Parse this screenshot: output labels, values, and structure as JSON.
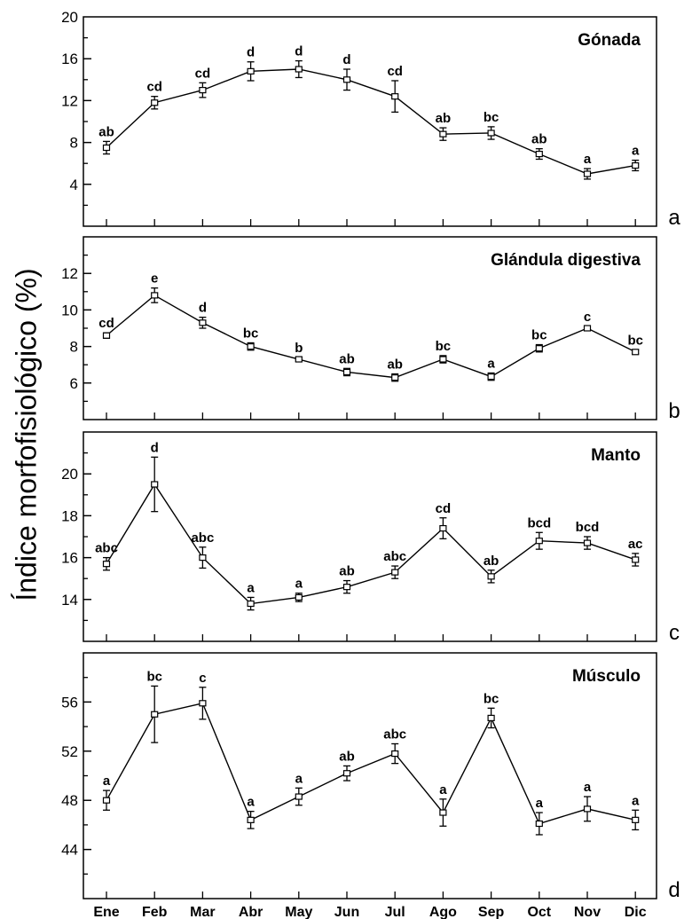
{
  "figure": {
    "ylabel": "Índice morfofisiológico (%)",
    "months": [
      "Ene",
      "Feb",
      "Mar",
      "Abr",
      "May",
      "Jun",
      "Jul",
      "Ago",
      "Sep",
      "Oct",
      "Nov",
      "Dic"
    ]
  },
  "chart_data": [
    {
      "type": "line",
      "title": "Gónada",
      "panel": "a",
      "xlabel": "",
      "ylabel": "Índice morfofisiológico (%)",
      "categories": [
        "Ene",
        "Feb",
        "Mar",
        "Abr",
        "May",
        "Jun",
        "Jul",
        "Ago",
        "Sep",
        "Oct",
        "Nov",
        "Dic"
      ],
      "values": [
        7.5,
        11.8,
        13.0,
        14.8,
        15.0,
        14.0,
        12.4,
        8.8,
        8.9,
        6.9,
        5.0,
        5.8
      ],
      "error": [
        0.6,
        0.6,
        0.7,
        0.9,
        0.8,
        1.0,
        1.5,
        0.6,
        0.6,
        0.5,
        0.5,
        0.5
      ],
      "letters": [
        "ab",
        "cd",
        "cd",
        "d",
        "d",
        "d",
        "cd",
        "ab",
        "bc",
        "ab",
        "a",
        "a"
      ],
      "ylim": [
        0,
        20
      ],
      "yticks": [
        4,
        8,
        12,
        16,
        20
      ],
      "grid": false
    },
    {
      "type": "line",
      "title": "Glándula digestiva",
      "panel": "b",
      "xlabel": "",
      "ylabel": "Índice morfofisiológico (%)",
      "categories": [
        "Ene",
        "Feb",
        "Mar",
        "Abr",
        "May",
        "Jun",
        "Jul",
        "Ago",
        "Sep",
        "Oct",
        "Nov",
        "Dic"
      ],
      "values": [
        8.6,
        10.8,
        9.3,
        8.0,
        7.3,
        6.6,
        6.3,
        7.3,
        6.35,
        7.9,
        9.0,
        7.7
      ],
      "error": [
        0.15,
        0.4,
        0.3,
        0.2,
        0.1,
        0.2,
        0.2,
        0.2,
        0.2,
        0.2,
        0.1,
        0.1
      ],
      "letters": [
        "cd",
        "e",
        "d",
        "bc",
        "b",
        "ab",
        "ab",
        "bc",
        "a",
        "bc",
        "c",
        "bc"
      ],
      "ylim": [
        4,
        14
      ],
      "yticks": [
        6,
        8,
        10,
        12
      ],
      "grid": false
    },
    {
      "type": "line",
      "title": "Manto",
      "panel": "c",
      "xlabel": "",
      "ylabel": "Índice morfofisiológico (%)",
      "categories": [
        "Ene",
        "Feb",
        "Mar",
        "Abr",
        "May",
        "Jun",
        "Jul",
        "Ago",
        "Sep",
        "Oct",
        "Nov",
        "Dic"
      ],
      "values": [
        15.7,
        19.5,
        16.0,
        13.8,
        14.1,
        14.6,
        15.3,
        17.4,
        15.1,
        16.8,
        16.7,
        15.9
      ],
      "error": [
        0.3,
        1.3,
        0.5,
        0.3,
        0.2,
        0.3,
        0.3,
        0.5,
        0.3,
        0.4,
        0.3,
        0.3
      ],
      "letters": [
        "abc",
        "d",
        "abc",
        "a",
        "a",
        "ab",
        "abc",
        "cd",
        "ab",
        "bcd",
        "bcd",
        "ac"
      ],
      "ylim": [
        12,
        22
      ],
      "yticks": [
        14,
        16,
        18,
        20
      ],
      "grid": false
    },
    {
      "type": "line",
      "title": "Músculo",
      "panel": "d",
      "xlabel": "",
      "ylabel": "Índice morfofisiológico (%)",
      "categories": [
        "Ene",
        "Feb",
        "Mar",
        "Abr",
        "May",
        "Jun",
        "Jul",
        "Ago",
        "Sep",
        "Oct",
        "Nov",
        "Dic"
      ],
      "values": [
        48.0,
        55.0,
        55.9,
        46.4,
        48.3,
        50.2,
        51.8,
        47.0,
        54.7,
        46.1,
        47.3,
        46.4
      ],
      "error": [
        0.8,
        2.3,
        1.3,
        0.7,
        0.7,
        0.6,
        0.8,
        1.1,
        0.8,
        0.9,
        1.0,
        0.8
      ],
      "letters": [
        "a",
        "bc",
        "c",
        "a",
        "a",
        "ab",
        "abc",
        "a",
        "bc",
        "a",
        "a",
        "a"
      ],
      "ylim": [
        40,
        60
      ],
      "yticks": [
        44,
        48,
        52,
        56
      ],
      "grid": false
    }
  ]
}
